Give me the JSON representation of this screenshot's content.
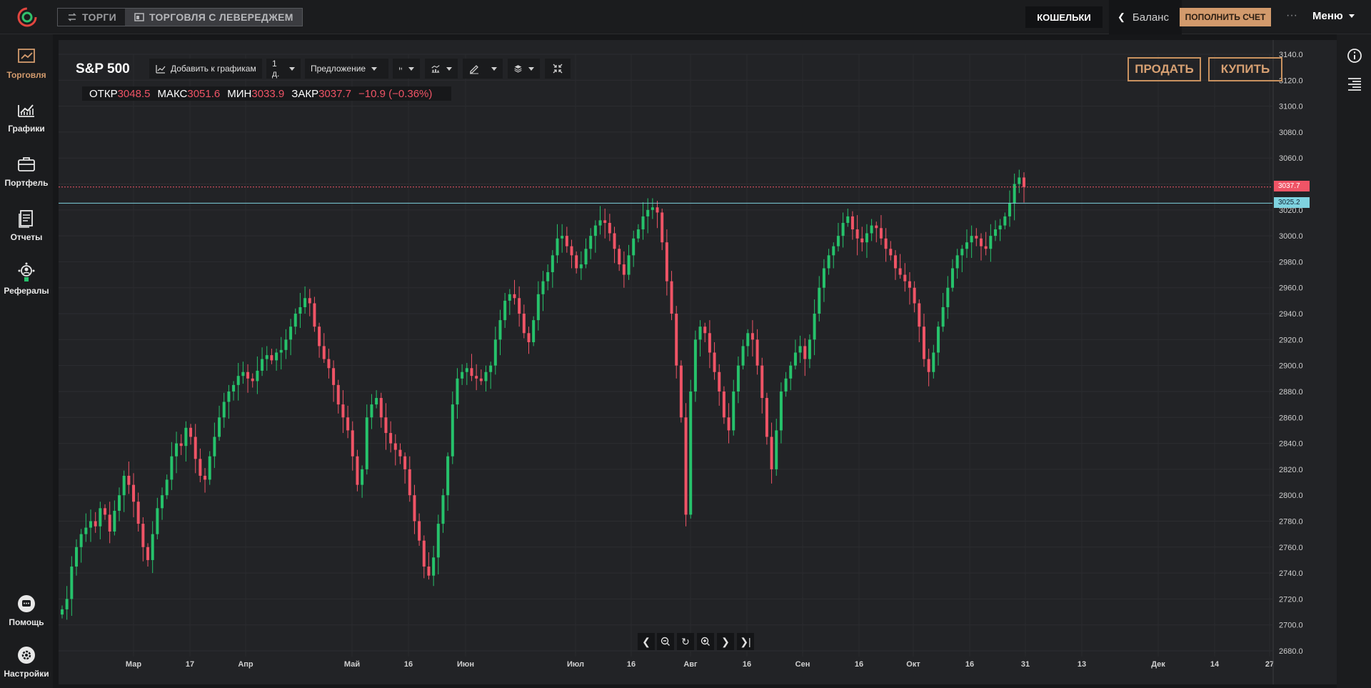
{
  "topbar": {
    "tabs": [
      {
        "label": "ТОРГИ",
        "active": false
      },
      {
        "label": "ТОРГОВЛЯ С ЛЕВЕРЕДЖЕМ",
        "active": true
      }
    ],
    "wallets_label": "КОШЕЛЬКИ",
    "balance_label": "Баланс",
    "deposit_label": "ПОПОЛНИТЬ СЧЕТ",
    "more_label": "···",
    "menu_label": "Меню"
  },
  "sidebar": {
    "items": [
      {
        "label": "Торговля",
        "icon": "trading-icon",
        "active": true
      },
      {
        "label": "Графики",
        "icon": "charts-icon",
        "active": false
      },
      {
        "label": "Портфель",
        "icon": "portfolio-icon",
        "active": false
      },
      {
        "label": "Отчеты",
        "icon": "reports-icon",
        "active": false
      },
      {
        "label": "Рефералы",
        "icon": "referrals-icon",
        "active": false
      }
    ],
    "bottom": [
      {
        "label": "Помощь",
        "icon": "help-icon"
      },
      {
        "label": "Настройки",
        "icon": "settings-icon"
      }
    ]
  },
  "toolbar": {
    "symbol": "S&P 500",
    "add_to_charts": "Добавить к графикам",
    "interval": "1 д.",
    "price_type": "Предложение"
  },
  "ohlc": {
    "open_label": "ОТКР",
    "open": "3048.5",
    "high_label": "МАКС",
    "high": "3051.6",
    "low_label": "МИН",
    "low": "3033.9",
    "close_label": "ЗАКР",
    "close": "3037.7",
    "change": "−10.9 (−0.36%)"
  },
  "trade": {
    "sell_label": "ПРОДАТЬ",
    "buy_label": "КУПИТЬ"
  },
  "colors": {
    "up": "#26c26b",
    "down": "#ef5466",
    "accent": "#d29a6c",
    "ask_line": "#ef5466",
    "bid_line": "#7fd3e0"
  },
  "chart_data": {
    "type": "candlestick",
    "title": "S&P 500",
    "y_range": [
      2680,
      3140
    ],
    "y_ticks": [
      "3140.0",
      "3120.0",
      "3100.0",
      "3080.0",
      "3060.0",
      "3040.0",
      "3020.0",
      "3000.0",
      "2980.0",
      "2960.0",
      "2940.0",
      "2920.0",
      "2900.0",
      "2880.0",
      "2860.0",
      "2840.0",
      "2820.0",
      "2800.0",
      "2780.0",
      "2760.0",
      "2740.0",
      "2720.0",
      "2700.0",
      "2680.0"
    ],
    "x_labels": [
      "Мар",
      "17",
      "Апр",
      "Май",
      "16",
      "Июн",
      "Июл",
      "16",
      "Авг",
      "16",
      "Сен",
      "16",
      "Окт",
      "16",
      "31",
      "13",
      "Дек",
      "14",
      "27"
    ],
    "price_lines": [
      {
        "label": "3037.7",
        "value": 3037.7,
        "kind": "ask"
      },
      {
        "label": "3025.2",
        "value": 3025.2,
        "kind": "bid"
      }
    ],
    "close_series": [
      2712,
      2720,
      2745,
      2760,
      2770,
      2775,
      2780,
      2776,
      2790,
      2785,
      2772,
      2788,
      2800,
      2815,
      2808,
      2795,
      2778,
      2760,
      2750,
      2770,
      2790,
      2800,
      2812,
      2830,
      2840,
      2838,
      2852,
      2845,
      2828,
      2815,
      2812,
      2830,
      2845,
      2860,
      2872,
      2880,
      2885,
      2892,
      2895,
      2890,
      2888,
      2896,
      2905,
      2908,
      2904,
      2910,
      2912,
      2920,
      2930,
      2940,
      2945,
      2952,
      2948,
      2930,
      2915,
      2905,
      2898,
      2885,
      2870,
      2860,
      2850,
      2830,
      2808,
      2820,
      2860,
      2870,
      2875,
      2860,
      2848,
      2840,
      2835,
      2830,
      2820,
      2800,
      2780,
      2765,
      2745,
      2738,
      2752,
      2778,
      2800,
      2830,
      2870,
      2890,
      2895,
      2898,
      2892,
      2890,
      2888,
      2895,
      2900,
      2920,
      2935,
      2950,
      2955,
      2952,
      2940,
      2925,
      2918,
      2935,
      2955,
      2965,
      2972,
      2985,
      2998,
      3000,
      2992,
      2985,
      2975,
      2978,
      2990,
      3000,
      3008,
      3012,
      3010,
      3002,
      2990,
      2978,
      2970,
      2985,
      2998,
      3005,
      3015,
      3020,
      3022,
      3018,
      2995,
      2965,
      2940,
      2900,
      2860,
      2785,
      2880,
      2920,
      2930,
      2925,
      2910,
      2895,
      2880,
      2860,
      2850,
      2880,
      2900,
      2915,
      2925,
      2920,
      2900,
      2875,
      2845,
      2820,
      2850,
      2880,
      2890,
      2900,
      2910,
      2915,
      2905,
      2920,
      2940,
      2960,
      2975,
      2985,
      2992,
      3000,
      3010,
      3015,
      3005,
      2998,
      2995,
      3002,
      3008,
      3006,
      2998,
      2990,
      2985,
      2975,
      2970,
      2965,
      2960,
      2948,
      2930,
      2905,
      2895,
      2910,
      2930,
      2945,
      2960,
      2975,
      2985,
      2990,
      2995,
      3000,
      2998,
      2992,
      2990,
      3000,
      3005,
      3008,
      3015,
      3025,
      3040,
      3045,
      3037.7
    ]
  },
  "right_icons": [
    "info-icon",
    "order-book-icon"
  ]
}
